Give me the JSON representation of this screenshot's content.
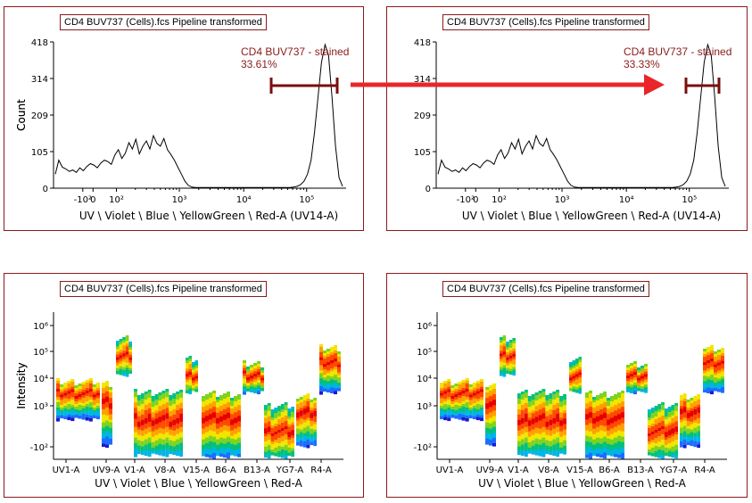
{
  "panels": [
    {
      "title": "CD4 BUV737 (Cells).fcs Pipeline transformed"
    },
    {
      "title": "CD4 BUV737 (Cells).fcs Pipeline transformed"
    },
    {
      "title": "CD4 BUV737 (Cells).fcs Pipeline transformed"
    },
    {
      "title": "CD4 BUV737 (Cells).fcs Pipeline transformed"
    }
  ],
  "colors": {
    "frame": "#8b1a1a",
    "arrow": "#e8262a",
    "gate": "#7a0e0e"
  },
  "chart_data": [
    {
      "type": "line",
      "title": "CD4 BUV737 (Cells).fcs Pipeline transformed",
      "xlabel": "UV \\ Violet \\ Blue \\ YellowGreen \\ Red-A (UV14-A)",
      "ylabel": "Count",
      "yticks": [
        "0",
        "105",
        "209",
        "314",
        "418"
      ],
      "ylim": [
        0,
        418
      ],
      "xticks": [
        "-10²",
        "0",
        "10²",
        "10³",
        "10⁴",
        "10⁵"
      ],
      "x_scale": "biexponential",
      "gate": {
        "name": "CD4 BUV737 - stained",
        "percent": "33.61%",
        "x_range": [
          30000,
          200000
        ]
      },
      "histogram": [
        40,
        80,
        60,
        55,
        48,
        52,
        45,
        58,
        50,
        62,
        70,
        66,
        58,
        72,
        80,
        76,
        68,
        95,
        110,
        85,
        100,
        130,
        112,
        140,
        98,
        120,
        135,
        112,
        150,
        128,
        120,
        142,
        110,
        96,
        80,
        60,
        40,
        20,
        8,
        3,
        2,
        2,
        2,
        2,
        2,
        2,
        2,
        2,
        2,
        2,
        2,
        2,
        2,
        2,
        2,
        2,
        2,
        2,
        2,
        2,
        2,
        2,
        2,
        2,
        2,
        2,
        2,
        2,
        3,
        5,
        10,
        20,
        40,
        80,
        160,
        260,
        360,
        410,
        380,
        260,
        120,
        30,
        5
      ]
    },
    {
      "type": "line",
      "title": "CD4 BUV737 (Cells).fcs Pipeline transformed",
      "xlabel": "UV \\ Violet \\ Blue \\ YellowGreen \\ Red-A (UV14-A)",
      "ylabel": "Count",
      "yticks": [
        "0",
        "105",
        "209",
        "314",
        "418"
      ],
      "ylim": [
        0,
        418
      ],
      "xticks": [
        "-10²",
        "0",
        "10²",
        "10³",
        "10⁴",
        "10⁵"
      ],
      "x_scale": "biexponential",
      "gate": {
        "name": "CD4 BUV737 - stained",
        "percent": "33.33%",
        "x_range": [
          80000,
          300000
        ]
      },
      "histogram": [
        40,
        80,
        60,
        55,
        48,
        52,
        45,
        58,
        50,
        62,
        70,
        66,
        58,
        72,
        80,
        76,
        68,
        95,
        110,
        85,
        100,
        130,
        112,
        140,
        98,
        120,
        135,
        112,
        150,
        128,
        120,
        142,
        110,
        96,
        80,
        60,
        40,
        20,
        8,
        3,
        2,
        2,
        2,
        2,
        2,
        2,
        2,
        2,
        2,
        2,
        2,
        2,
        2,
        2,
        2,
        2,
        2,
        2,
        2,
        2,
        2,
        2,
        2,
        2,
        2,
        2,
        2,
        2,
        3,
        5,
        10,
        20,
        40,
        80,
        160,
        260,
        360,
        410,
        380,
        260,
        120,
        30,
        5
      ]
    },
    {
      "type": "heatmap",
      "title": "CD4 BUV737 (Cells).fcs Pipeline transformed",
      "xlabel": "UV \\ Violet \\ Blue \\ YellowGreen \\ Red-A",
      "ylabel": "Intensity",
      "yticks": [
        "10⁶",
        "10⁵",
        "10⁴",
        "10³",
        "-10²"
      ],
      "categories": [
        "UV1-A",
        "UV9-A",
        "V1-A",
        "V8-A",
        "V15-A",
        "B6-A",
        "B13-A",
        "YG7-A",
        "R4-A"
      ]
    },
    {
      "type": "heatmap",
      "title": "CD4 BUV737 (Cells).fcs Pipeline transformed",
      "xlabel": "UV \\ Violet \\ Blue \\ YellowGreen \\ Red-A",
      "ylabel": "Intensity",
      "yticks": [
        "10⁶",
        "10⁵",
        "10⁴",
        "10³",
        "-10²"
      ],
      "categories": [
        "UV1-A",
        "UV9-A",
        "V1-A",
        "V8-A",
        "V15-A",
        "B6-A",
        "B13-A",
        "YG7-A",
        "R4-A"
      ]
    }
  ]
}
